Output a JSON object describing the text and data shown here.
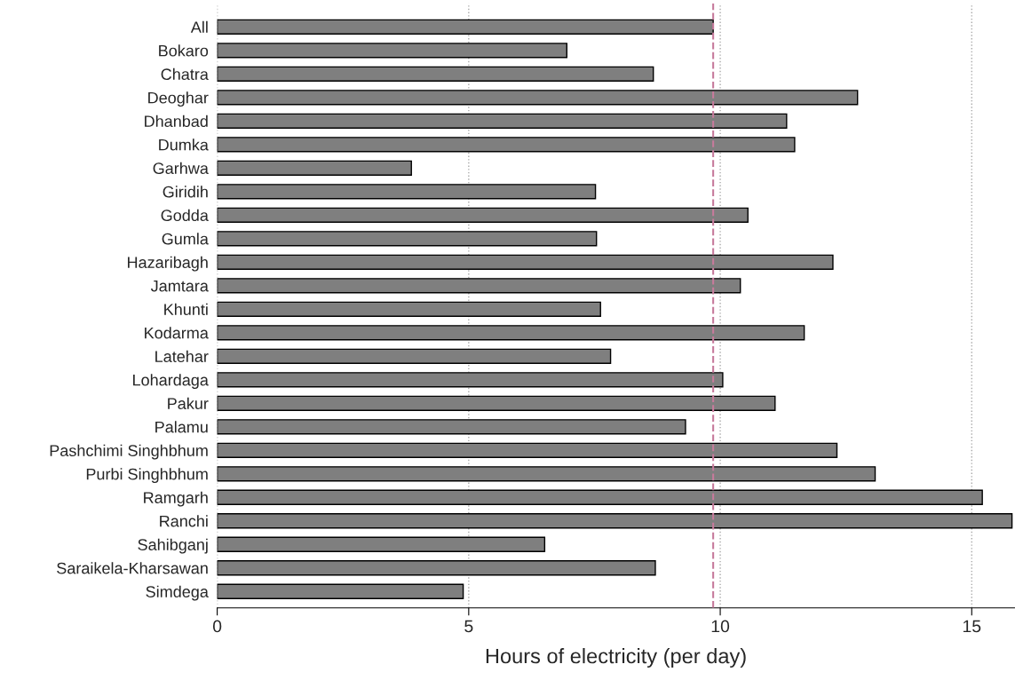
{
  "chart_data": {
    "type": "bar",
    "orientation": "horizontal",
    "xlabel": "Hours of electricity (per day)",
    "categories": [
      "All",
      "Bokaro",
      "Chatra",
      "Deoghar",
      "Dhanbad",
      "Dumka",
      "Garhwa",
      "Giridih",
      "Godda",
      "Gumla",
      "Hazaribagh",
      "Jamtara",
      "Khunti",
      "Kodarma",
      "Latehar",
      "Lohardaga",
      "Pakur",
      "Palamu",
      "Pashchimi Singhbhum",
      "Purbi Singhbhum",
      "Ramgarh",
      "Ranchi",
      "Sahibganj",
      "Saraikela-Kharsawan",
      "Simdega"
    ],
    "values": [
      9.86,
      6.95,
      8.67,
      12.73,
      11.32,
      11.48,
      3.86,
      7.52,
      10.55,
      7.54,
      12.24,
      10.4,
      7.62,
      11.67,
      7.82,
      10.05,
      11.09,
      9.31,
      12.32,
      13.08,
      15.21,
      15.8,
      6.51,
      8.71,
      4.89
    ],
    "color": "#7f7f7f",
    "xlim": [
      0,
      15.85
    ],
    "xticks": [
      0,
      5,
      10,
      15
    ],
    "grid": "x",
    "ref_lines": [
      {
        "axis": "x",
        "value": 9.86,
        "color": "#c77b9c",
        "line_style": "dashed"
      }
    ]
  }
}
